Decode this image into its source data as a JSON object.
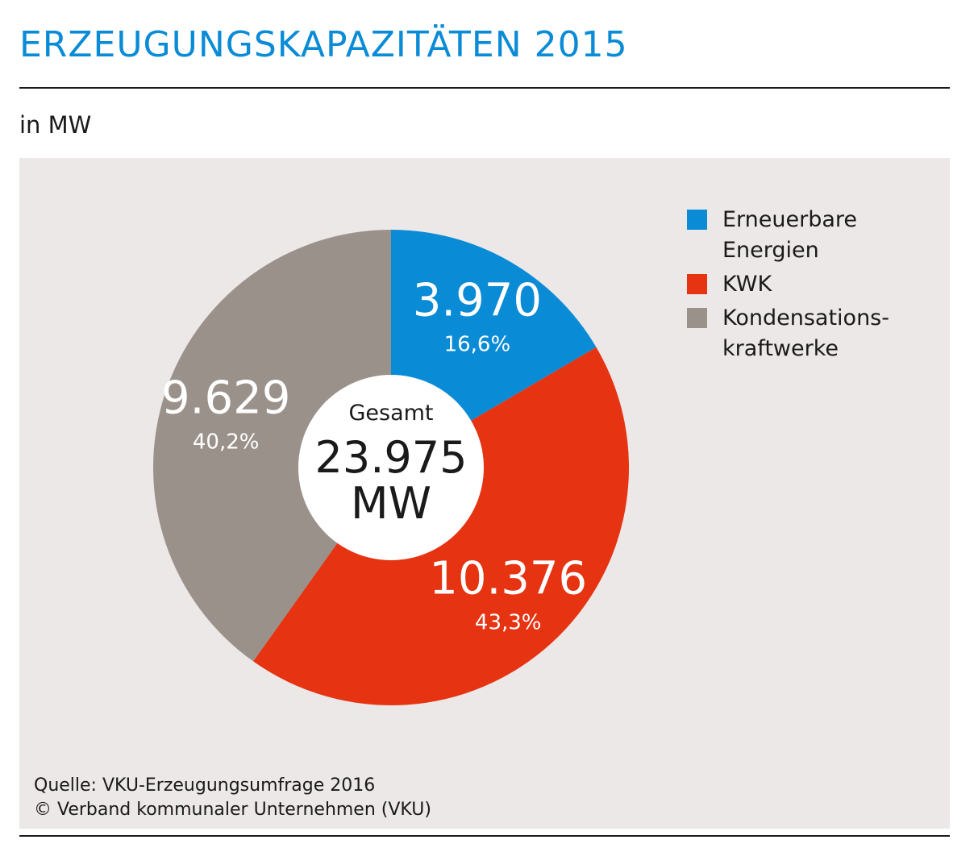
{
  "title": "ERZEUGUNGSKAPAZITÄTEN 2015",
  "unit_label": "in MW",
  "center": {
    "label": "Gesamt",
    "value": "23.975",
    "unit": "MW"
  },
  "source": {
    "line1": "Quelle: VKU-Erzeugungsumfrage 2016",
    "line2": "© Verband kommunaler Unternehmen (VKU)"
  },
  "chart_data": {
    "type": "pie",
    "title": "ERZEUGUNGSKAPAZITÄTEN 2015",
    "total": 23975,
    "legend_position": "top-right",
    "slices": [
      {
        "name": "Erneuerbare\nEnergien",
        "value": 3970,
        "value_label": "3.970",
        "percent": 16.6,
        "percent_label": "16,6%",
        "color": "#0a8bd6"
      },
      {
        "name": "KWK",
        "value": 10376,
        "value_label": "10.376",
        "percent": 43.3,
        "percent_label": "43,3%",
        "color": "#e63312"
      },
      {
        "name": "Kondensations-\nkraftwerke",
        "value": 9629,
        "value_label": "9.629",
        "percent": 40.2,
        "percent_label": "40,2%",
        "color": "#9b918b"
      }
    ]
  }
}
